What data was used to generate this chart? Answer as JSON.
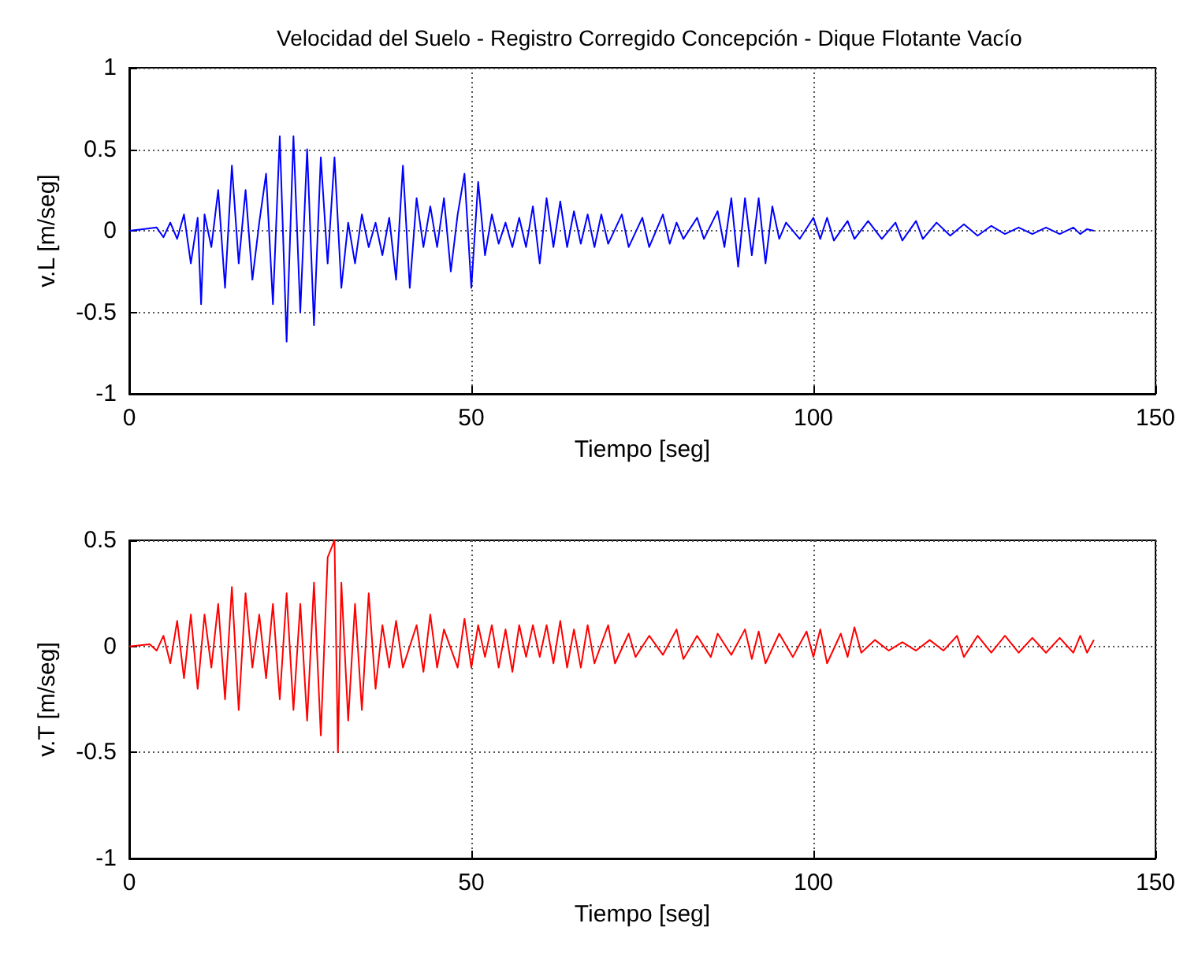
{
  "chart_data": [
    {
      "type": "line",
      "title": "Velocidad del Suelo - Registro Corregido Concepción - Dique Flotante Vacío",
      "xlabel": "Tiempo [seg]",
      "ylabel": "v.L [m/seg]",
      "xlim": [
        0,
        150
      ],
      "xticks": [
        0,
        50,
        100,
        150
      ],
      "ylim": [
        -1,
        1
      ],
      "yticks": [
        -1,
        -0.5,
        0,
        0.5,
        1
      ],
      "grid": true,
      "marker": "none",
      "line_style": "solid",
      "series": [
        {
          "color": "#0000ff",
          "x": [
            0,
            2,
            4,
            5,
            6,
            7,
            8,
            9,
            10,
            10.5,
            11,
            12,
            13,
            14,
            15,
            16,
            17,
            18,
            19,
            20,
            21,
            22,
            23,
            24,
            25,
            26,
            27,
            28,
            29,
            30,
            31,
            32,
            33,
            34,
            35,
            36,
            37,
            38,
            39,
            40,
            41,
            42,
            43,
            44,
            45,
            46,
            47,
            48,
            49,
            50,
            51,
            52,
            53,
            54,
            55,
            56,
            57,
            58,
            59,
            60,
            61,
            62,
            63,
            64,
            65,
            66,
            67,
            68,
            69,
            70,
            72,
            73,
            75,
            76,
            78,
            79,
            80,
            81,
            83,
            84,
            86,
            87,
            88,
            89,
            90,
            91,
            92,
            93,
            94,
            95,
            96,
            98,
            100,
            101,
            102,
            103,
            105,
            106,
            108,
            110,
            112,
            113,
            115,
            116,
            118,
            120,
            122,
            124,
            126,
            128,
            130,
            132,
            134,
            136,
            138,
            139,
            140,
            141
          ],
          "values": [
            0,
            0.01,
            0.02,
            -0.04,
            0.05,
            -0.05,
            0.1,
            -0.2,
            0.08,
            -0.45,
            0.1,
            -0.1,
            0.25,
            -0.35,
            0.4,
            -0.2,
            0.25,
            -0.3,
            0.05,
            0.35,
            -0.45,
            0.58,
            -0.68,
            0.58,
            -0.5,
            0.5,
            -0.58,
            0.45,
            -0.2,
            0.45,
            -0.35,
            0.05,
            -0.2,
            0.1,
            -0.1,
            0.05,
            -0.15,
            0.08,
            -0.3,
            0.4,
            -0.35,
            0.2,
            -0.1,
            0.15,
            -0.1,
            0.2,
            -0.25,
            0.1,
            0.35,
            -0.35,
            0.3,
            -0.15,
            0.1,
            -0.08,
            0.05,
            -0.1,
            0.08,
            -0.1,
            0.15,
            -0.2,
            0.2,
            -0.1,
            0.18,
            -0.1,
            0.12,
            -0.08,
            0.1,
            -0.1,
            0.1,
            -0.08,
            0.1,
            -0.1,
            0.08,
            -0.1,
            0.1,
            -0.08,
            0.05,
            -0.05,
            0.08,
            -0.05,
            0.12,
            -0.1,
            0.2,
            -0.22,
            0.2,
            -0.15,
            0.2,
            -0.2,
            0.15,
            -0.05,
            0.05,
            -0.05,
            0.08,
            -0.05,
            0.08,
            -0.06,
            0.06,
            -0.05,
            0.06,
            -0.05,
            0.05,
            -0.06,
            0.06,
            -0.05,
            0.05,
            -0.03,
            0.04,
            -0.03,
            0.03,
            -0.02,
            0.02,
            -0.02,
            0.02,
            -0.02,
            0.02,
            -0.02,
            0.01,
            0
          ]
        }
      ]
    },
    {
      "type": "line",
      "xlabel": "Tiempo [seg]",
      "ylabel": "v.T [m/seg]",
      "xlim": [
        0,
        150
      ],
      "xticks": [
        0,
        50,
        100,
        150
      ],
      "ylim": [
        -1,
        0.5
      ],
      "yticks": [
        -1,
        -0.5,
        0,
        0.5
      ],
      "grid": true,
      "marker": "none",
      "line_style": "solid",
      "series": [
        {
          "color": "#ff0000",
          "x": [
            0,
            3,
            4,
            5,
            6,
            7,
            8,
            9,
            10,
            11,
            12,
            13,
            14,
            15,
            16,
            17,
            18,
            19,
            20,
            21,
            22,
            23,
            24,
            25,
            26,
            27,
            28,
            29,
            30,
            30.5,
            31,
            32,
            33,
            34,
            35,
            36,
            37,
            38,
            39,
            40,
            42,
            43,
            44,
            45,
            46,
            48,
            49,
            50,
            51,
            52,
            53,
            54,
            55,
            56,
            57,
            58,
            59,
            60,
            61,
            62,
            63,
            64,
            65,
            66,
            67,
            68,
            70,
            71,
            73,
            74,
            76,
            78,
            80,
            81,
            83,
            85,
            86,
            88,
            90,
            91,
            92,
            93,
            95,
            97,
            99,
            100,
            101,
            102,
            104,
            105,
            106,
            107,
            109,
            111,
            113,
            115,
            117,
            119,
            121,
            122,
            124,
            126,
            128,
            130,
            132,
            134,
            136,
            138,
            139,
            140,
            141
          ],
          "values": [
            0,
            0.01,
            -0.02,
            0.05,
            -0.08,
            0.12,
            -0.15,
            0.15,
            -0.2,
            0.15,
            -0.1,
            0.2,
            -0.25,
            0.28,
            -0.3,
            0.25,
            -0.1,
            0.15,
            -0.15,
            0.2,
            -0.25,
            0.25,
            -0.3,
            0.2,
            -0.35,
            0.3,
            -0.42,
            0.42,
            0.5,
            -0.5,
            0.3,
            -0.35,
            0.2,
            -0.3,
            0.25,
            -0.2,
            0.1,
            -0.1,
            0.12,
            -0.1,
            0.1,
            -0.12,
            0.15,
            -0.1,
            0.08,
            -0.1,
            0.13,
            -0.1,
            0.1,
            -0.05,
            0.1,
            -0.1,
            0.08,
            -0.12,
            0.1,
            -0.05,
            0.1,
            -0.05,
            0.1,
            -0.08,
            0.12,
            -0.1,
            0.08,
            -0.1,
            0.1,
            -0.08,
            0.1,
            -0.08,
            0.06,
            -0.05,
            0.05,
            -0.04,
            0.08,
            -0.06,
            0.05,
            -0.05,
            0.06,
            -0.04,
            0.08,
            -0.06,
            0.07,
            -0.08,
            0.06,
            -0.05,
            0.07,
            -0.05,
            0.08,
            -0.08,
            0.06,
            -0.05,
            0.09,
            -0.03,
            0.03,
            -0.02,
            0.02,
            -0.02,
            0.03,
            -0.02,
            0.05,
            -0.05,
            0.05,
            -0.03,
            0.05,
            -0.03,
            0.04,
            -0.03,
            0.04,
            -0.03,
            0.05,
            -0.03,
            0.03
          ]
        }
      ]
    }
  ]
}
